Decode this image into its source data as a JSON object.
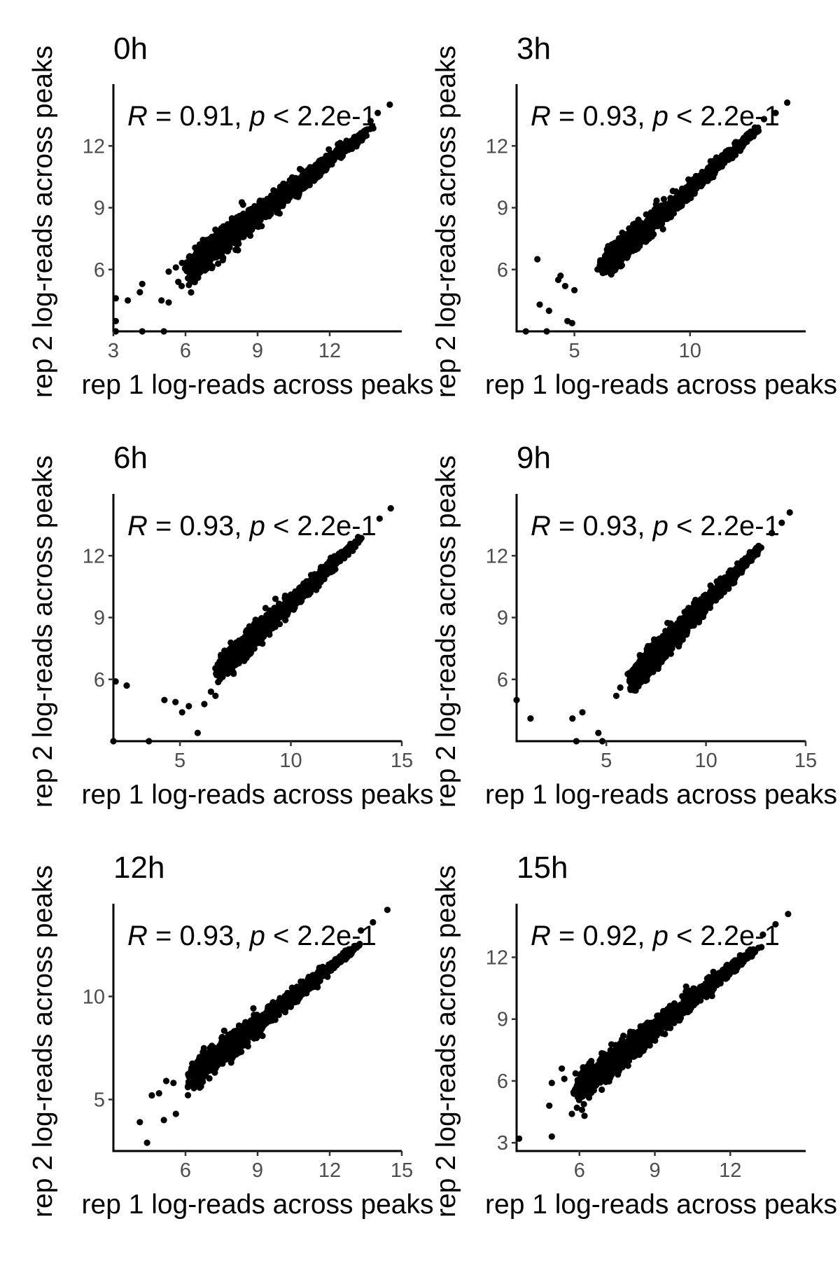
{
  "chart_data": [
    {
      "type": "scatter",
      "title": "0h",
      "xlabel": "rep 1 log-reads across peaks",
      "ylabel": "rep 2 log-reads across peaks",
      "xlim": [
        3,
        15
      ],
      "ylim": [
        3,
        15
      ],
      "xticks": [
        3,
        6,
        9,
        12
      ],
      "yticks": [
        6,
        9,
        12
      ],
      "annotation": {
        "r_value": "0.91",
        "p_text": "2.2e-1"
      },
      "grid": false,
      "dense_cloud": {
        "x_center": 8.2,
        "y_center": 7.9,
        "spread": 0.6,
        "slope": 0.9,
        "x_min": 6.4,
        "x_max": 13.5
      },
      "outliers": [
        [
          3.1,
          4.6
        ],
        [
          3.1,
          3.5
        ],
        [
          3.6,
          4.5
        ],
        [
          4.1,
          4.9
        ],
        [
          4.2,
          5.3
        ],
        [
          5.0,
          4.5
        ],
        [
          5.3,
          4.4
        ],
        [
          5.3,
          5.9
        ],
        [
          5.6,
          6.1
        ],
        [
          5.7,
          5.4
        ],
        [
          3.1,
          3.0
        ],
        [
          4.2,
          3.0
        ],
        [
          5.1,
          3.0
        ],
        [
          13.7,
          13.2
        ],
        [
          14.0,
          13.6
        ],
        [
          14.5,
          14.0
        ]
      ]
    },
    {
      "type": "scatter",
      "title": "3h",
      "xlabel": "rep 1 log-reads across peaks",
      "ylabel": "rep 2 log-reads across peaks",
      "xlim": [
        2.5,
        15
      ],
      "ylim": [
        3,
        15
      ],
      "xticks": [
        5,
        10
      ],
      "yticks": [
        6,
        9,
        12
      ],
      "annotation": {
        "r_value": "0.93",
        "p_text": "2.2e-1"
      },
      "grid": false,
      "dense_cloud": {
        "x_center": 8.4,
        "y_center": 8.3,
        "spread": 0.5,
        "slope": 1.0,
        "x_min": 6.5,
        "x_max": 12.8
      },
      "outliers": [
        [
          3.5,
          4.3
        ],
        [
          3.9,
          4.0
        ],
        [
          3.4,
          6.5
        ],
        [
          4.3,
          5.5
        ],
        [
          4.6,
          5.2
        ],
        [
          4.4,
          5.7
        ],
        [
          4.7,
          3.5
        ],
        [
          4.9,
          3.4
        ],
        [
          5.0,
          5.0
        ],
        [
          2.9,
          3.0
        ],
        [
          3.8,
          3.0
        ],
        [
          6.1,
          6.2
        ],
        [
          6.4,
          6.3
        ],
        [
          13.2,
          13.3
        ],
        [
          13.7,
          13.6
        ],
        [
          14.2,
          14.1
        ]
      ]
    },
    {
      "type": "scatter",
      "title": "6h",
      "xlabel": "rep 1 log-reads across peaks",
      "ylabel": "rep 2 log-reads across peaks",
      "xlim": [
        2,
        15
      ],
      "ylim": [
        3,
        15
      ],
      "xticks": [
        5,
        10,
        15
      ],
      "yticks": [
        6,
        9,
        12
      ],
      "annotation": {
        "r_value": "0.93",
        "p_text": "2.2e-1"
      },
      "grid": false,
      "dense_cloud": {
        "x_center": 8.8,
        "y_center": 8.5,
        "spread": 0.5,
        "slope": 1.0,
        "x_min": 7.0,
        "x_max": 13.0
      },
      "outliers": [
        [
          2.1,
          5.9
        ],
        [
          2.6,
          5.7
        ],
        [
          4.3,
          5.0
        ],
        [
          4.8,
          4.9
        ],
        [
          5.1,
          4.4
        ],
        [
          5.4,
          4.7
        ],
        [
          5.8,
          3.4
        ],
        [
          6.1,
          4.8
        ],
        [
          6.4,
          5.4
        ],
        [
          6.6,
          5.2
        ],
        [
          2.0,
          3.0
        ],
        [
          3.6,
          3.0
        ],
        [
          6.8,
          6.0
        ],
        [
          14.0,
          13.8
        ],
        [
          14.5,
          14.3
        ]
      ]
    },
    {
      "type": "scatter",
      "title": "9h",
      "xlabel": "rep 1 log-reads across peaks",
      "ylabel": "rep 2 log-reads across peaks",
      "xlim": [
        0.5,
        15
      ],
      "ylim": [
        3,
        15
      ],
      "xticks": [
        5,
        10,
        15
      ],
      "yticks": [
        6,
        9,
        12
      ],
      "annotation": {
        "r_value": "0.93",
        "p_text": "2.2e-1"
      },
      "grid": false,
      "dense_cloud": {
        "x_center": 8.3,
        "y_center": 8.0,
        "spread": 0.55,
        "slope": 1.0,
        "x_min": 6.5,
        "x_max": 12.5
      },
      "outliers": [
        [
          0.5,
          5.0
        ],
        [
          1.2,
          4.1
        ],
        [
          3.3,
          4.1
        ],
        [
          3.8,
          4.4
        ],
        [
          4.6,
          3.4
        ],
        [
          5.5,
          5.2
        ],
        [
          5.7,
          5.6
        ],
        [
          3.5,
          3.0
        ],
        [
          4.8,
          3.0
        ],
        [
          13.3,
          13.1
        ],
        [
          13.8,
          13.6
        ],
        [
          14.2,
          14.1
        ]
      ]
    },
    {
      "type": "scatter",
      "title": "12h",
      "xlabel": "rep 1 log-reads across peaks",
      "ylabel": "rep 2 log-reads across peaks",
      "xlim": [
        3,
        15
      ],
      "ylim": [
        2.5,
        14.5
      ],
      "xticks": [
        6,
        9,
        12,
        15
      ],
      "yticks": [
        5,
        10
      ],
      "annotation": {
        "r_value": "0.93",
        "p_text": "2.2e-1"
      },
      "grid": false,
      "dense_cloud": {
        "x_center": 8.2,
        "y_center": 7.9,
        "spread": 0.5,
        "slope": 0.92,
        "x_min": 6.5,
        "x_max": 13.0
      },
      "outliers": [
        [
          4.1,
          3.9
        ],
        [
          4.4,
          2.9
        ],
        [
          4.6,
          5.2
        ],
        [
          4.9,
          5.3
        ],
        [
          5.1,
          4.0
        ],
        [
          5.5,
          5.8
        ],
        [
          5.6,
          4.3
        ],
        [
          5.2,
          5.9
        ],
        [
          6.1,
          5.6
        ],
        [
          6.6,
          5.6
        ],
        [
          13.3,
          13.2
        ],
        [
          13.8,
          13.6
        ],
        [
          14.4,
          14.2
        ]
      ]
    },
    {
      "type": "scatter",
      "title": "15h",
      "xlabel": "rep 1 log-reads across peaks",
      "ylabel": "rep 2 log-reads across peaks",
      "xlim": [
        3.5,
        15
      ],
      "ylim": [
        2.6,
        14.6
      ],
      "xticks": [
        6,
        9,
        12
      ],
      "yticks": [
        3,
        6,
        9,
        12
      ],
      "annotation": {
        "r_value": "0.92",
        "p_text": "2.2e-1"
      },
      "grid": false,
      "dense_cloud": {
        "x_center": 8.0,
        "y_center": 7.6,
        "spread": 0.6,
        "slope": 0.95,
        "x_min": 6.2,
        "x_max": 12.8
      },
      "outliers": [
        [
          3.6,
          3.2
        ],
        [
          4.8,
          4.8
        ],
        [
          4.9,
          3.3
        ],
        [
          4.9,
          5.9
        ],
        [
          5.3,
          6.6
        ],
        [
          5.4,
          6.1
        ],
        [
          5.7,
          4.4
        ],
        [
          5.9,
          4.7
        ],
        [
          6.1,
          4.6
        ],
        [
          6.3,
          6.2
        ],
        [
          13.3,
          13.1
        ],
        [
          13.8,
          13.6
        ],
        [
          14.3,
          14.1
        ]
      ]
    }
  ]
}
